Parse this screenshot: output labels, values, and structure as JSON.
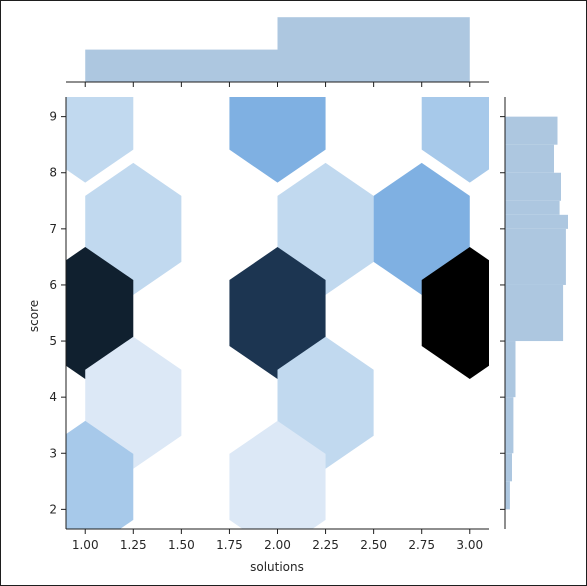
{
  "chart_data": {
    "type": "hexbin-joint",
    "xlabel": "solutions",
    "ylabel": "score",
    "xlim": [
      0.9,
      3.1
    ],
    "ylim": [
      1.65,
      9.35
    ],
    "x_ticks": [
      "1.00",
      "1.25",
      "1.50",
      "1.75",
      "2.00",
      "2.25",
      "2.50",
      "2.75",
      "3.00"
    ],
    "y_ticks": [
      "2",
      "3",
      "4",
      "5",
      "6",
      "7",
      "8",
      "9"
    ],
    "hexbins": [
      {
        "x": 1.0,
        "y": 9.0,
        "count": 3
      },
      {
        "x": 1.25,
        "y": 7.0,
        "count": 2
      },
      {
        "x": 1.0,
        "y": 5.5,
        "count": 12
      },
      {
        "x": 1.25,
        "y": 3.9,
        "count": 1
      },
      {
        "x": 1.0,
        "y": 2.4,
        "count": 4
      },
      {
        "x": 2.0,
        "y": 9.0,
        "count": 5
      },
      {
        "x": 2.25,
        "y": 7.0,
        "count": 3
      },
      {
        "x": 2.0,
        "y": 5.5,
        "count": 10
      },
      {
        "x": 2.25,
        "y": 3.9,
        "count": 2
      },
      {
        "x": 2.0,
        "y": 2.4,
        "count": 1
      },
      {
        "x": 3.0,
        "y": 9.0,
        "count": 4
      },
      {
        "x": 2.75,
        "y": 7.0,
        "count": 5
      },
      {
        "x": 3.0,
        "y": 5.5,
        "count": 13
      }
    ],
    "marginal_x": {
      "bins": [
        {
          "x0": 1.0,
          "x1": 2.0,
          "height": 0.45
        },
        {
          "x0": 2.0,
          "x1": 3.0,
          "height": 0.9
        }
      ]
    },
    "marginal_y": {
      "bins": [
        {
          "y0": 2.0,
          "y1": 2.5,
          "width": 0.07
        },
        {
          "y0": 2.5,
          "y1": 3.0,
          "width": 0.1
        },
        {
          "y0": 3.0,
          "y1": 4.0,
          "width": 0.12
        },
        {
          "y0": 4.0,
          "y1": 5.0,
          "width": 0.15
        },
        {
          "y0": 5.0,
          "y1": 6.0,
          "width": 0.83
        },
        {
          "y0": 6.0,
          "y1": 7.0,
          "width": 0.87
        },
        {
          "y0": 7.0,
          "y1": 7.25,
          "width": 0.9
        },
        {
          "y0": 7.25,
          "y1": 7.5,
          "width": 0.78
        },
        {
          "y0": 7.5,
          "y1": 8.0,
          "width": 0.8
        },
        {
          "y0": 8.0,
          "y1": 8.5,
          "width": 0.7
        },
        {
          "y0": 8.5,
          "y1": 9.0,
          "width": 0.75
        }
      ]
    },
    "colors": {
      "marginal_fill": "#adc7e0",
      "colormap": [
        "#dce8f6",
        "#c1d9ef",
        "#a7c9ea",
        "#7fb0e2",
        "#5e9ddd",
        "#4a8fdb",
        "#1c3551",
        "#10202f",
        "#000000"
      ],
      "axis": "#1e1e1e"
    }
  }
}
